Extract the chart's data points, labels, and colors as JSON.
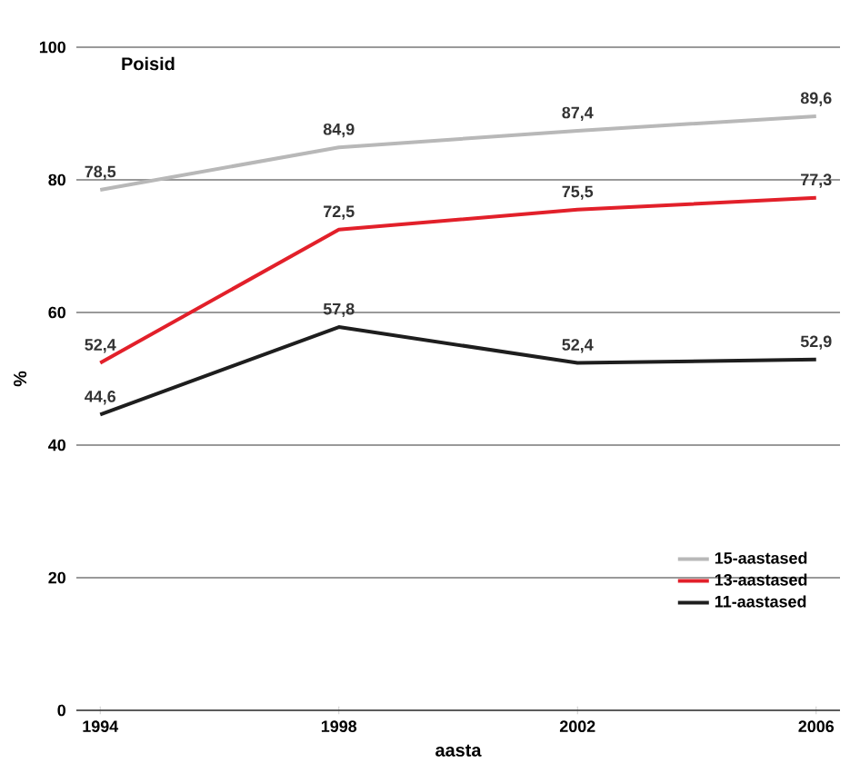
{
  "chart_data": {
    "type": "line",
    "title": "Poisid",
    "xlabel": "aasta",
    "ylabel": "%",
    "x": [
      1994,
      1998,
      2002,
      2006
    ],
    "xlim": [
      1993.6,
      2006.4
    ],
    "xticks": [
      1994,
      1998,
      2002,
      2006
    ],
    "ylim": [
      0,
      100
    ],
    "yticks": [
      0,
      20,
      40,
      60,
      80,
      100
    ],
    "grid": "y",
    "legend": "bottom right",
    "marker": "none",
    "line_style": "solid",
    "series": [
      {
        "name": "15-aastased",
        "color": "#b8b8b8",
        "values": [
          78.5,
          84.9,
          87.4,
          89.6
        ],
        "value_labels": [
          "78,5",
          "84,9",
          "87,4",
          "89,6"
        ]
      },
      {
        "name": "13-aastased",
        "color": "#e2202a",
        "values": [
          52.4,
          72.5,
          75.5,
          77.3
        ],
        "value_labels": [
          "52,4",
          "72,5",
          "75,5",
          "77,3"
        ]
      },
      {
        "name": "11-aastased",
        "color": "#1e1e1e",
        "values": [
          44.6,
          57.8,
          52.4,
          52.9
        ],
        "value_labels": [
          "44,6",
          "57,8",
          "52,4",
          "52,9"
        ]
      }
    ]
  }
}
